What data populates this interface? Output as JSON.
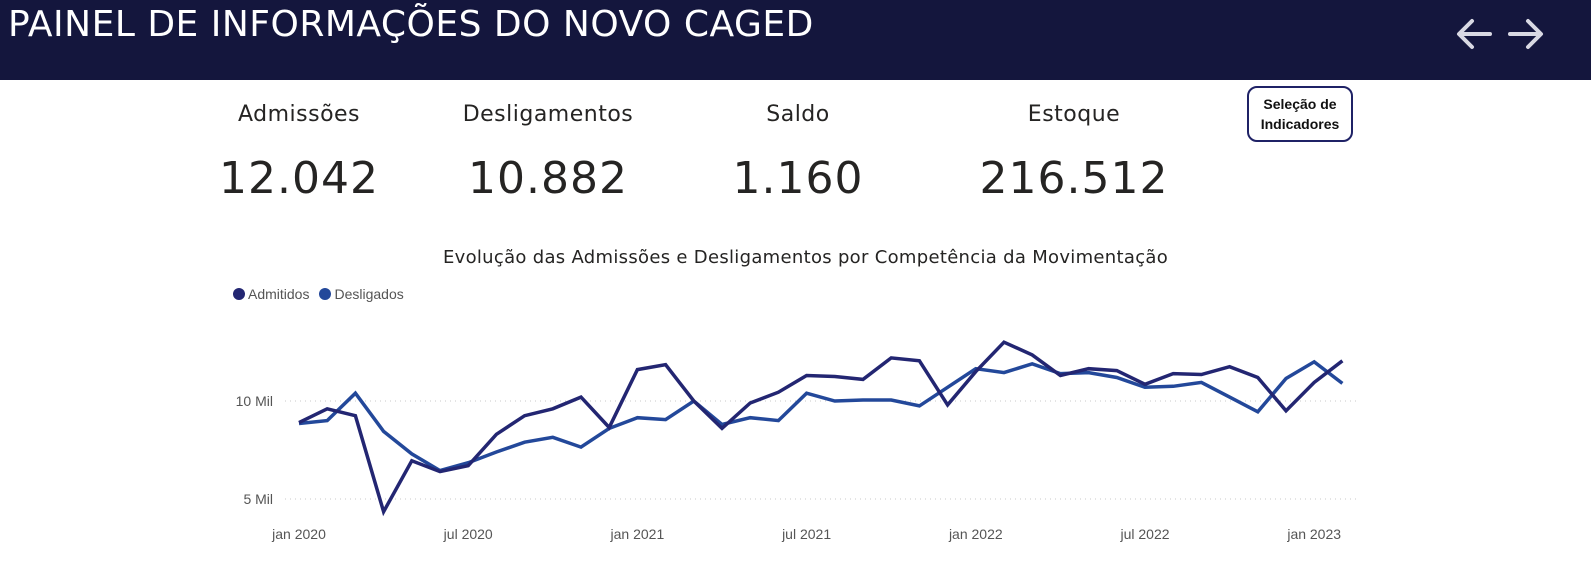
{
  "header": {
    "title": "PAINEL DE INFORMAÇÕES DO NOVO CAGED"
  },
  "nav": {
    "back_icon": "arrow-left-icon",
    "forward_icon": "arrow-right-icon"
  },
  "kpis": [
    {
      "label": "Admissões",
      "value": "12.042"
    },
    {
      "label": "Desligamentos",
      "value": "10.882"
    },
    {
      "label": "Saldo",
      "value": "1.160"
    },
    {
      "label": "Estoque",
      "value": "216.512"
    }
  ],
  "selection_button": {
    "line1": "Seleção de",
    "line2": "Indicadores"
  },
  "colors": {
    "header_bg": "#14163d",
    "admitidos": "#232672",
    "desligados": "#23489a"
  },
  "chart_data": {
    "type": "line",
    "title": "Evolução das Admissões e Desligamentos por Competência da Movimentação",
    "legend": "top-left",
    "grid": true,
    "x": [
      "2020-01",
      "2020-02",
      "2020-03",
      "2020-04",
      "2020-05",
      "2020-06",
      "2020-07",
      "2020-08",
      "2020-09",
      "2020-10",
      "2020-11",
      "2020-12",
      "2021-01",
      "2021-02",
      "2021-03",
      "2021-04",
      "2021-05",
      "2021-06",
      "2021-07",
      "2021-08",
      "2021-09",
      "2021-10",
      "2021-11",
      "2021-12",
      "2022-01",
      "2022-02",
      "2022-03",
      "2022-04",
      "2022-05",
      "2022-06",
      "2022-07",
      "2022-08",
      "2022-09",
      "2022-10",
      "2022-11",
      "2022-12",
      "2023-01",
      "2023-02"
    ],
    "x_ticks": [
      {
        "x": "2020-01",
        "label": "jan 2020"
      },
      {
        "x": "2020-07",
        "label": "jul 2020"
      },
      {
        "x": "2021-01",
        "label": "jan 2021"
      },
      {
        "x": "2021-07",
        "label": "jul 2021"
      },
      {
        "x": "2022-01",
        "label": "jan 2022"
      },
      {
        "x": "2022-07",
        "label": "jul 2022"
      },
      {
        "x": "2023-01",
        "label": "jan 2023"
      }
    ],
    "y_ticks": [
      {
        "value": 5000,
        "label": "5 Mil"
      },
      {
        "value": 10000,
        "label": "10 Mil"
      }
    ],
    "ylim": [
      4000,
      14000
    ],
    "series": [
      {
        "name": "Admitidos",
        "values": [
          8900,
          9600,
          9250,
          4350,
          6950,
          6400,
          6700,
          8300,
          9250,
          9600,
          10200,
          8650,
          11600,
          11850,
          10000,
          8600,
          9900,
          10450,
          11300,
          11250,
          11100,
          12200,
          12050,
          9800,
          11500,
          13000,
          12350,
          11300,
          11650,
          11550,
          10850,
          11400,
          11350,
          11750,
          11200,
          9500,
          10950,
          12050
        ]
      },
      {
        "name": "Desligados",
        "values": [
          8850,
          9000,
          10400,
          8450,
          7300,
          6450,
          6850,
          7400,
          7900,
          8150,
          7650,
          8600,
          9150,
          9050,
          10000,
          8800,
          9150,
          9000,
          10400,
          10000,
          10050,
          10050,
          9750,
          10700,
          11650,
          11450,
          11900,
          11400,
          11450,
          11200,
          10700,
          10750,
          10950,
          10200,
          9450,
          11150,
          12000,
          10900
        ]
      }
    ]
  }
}
